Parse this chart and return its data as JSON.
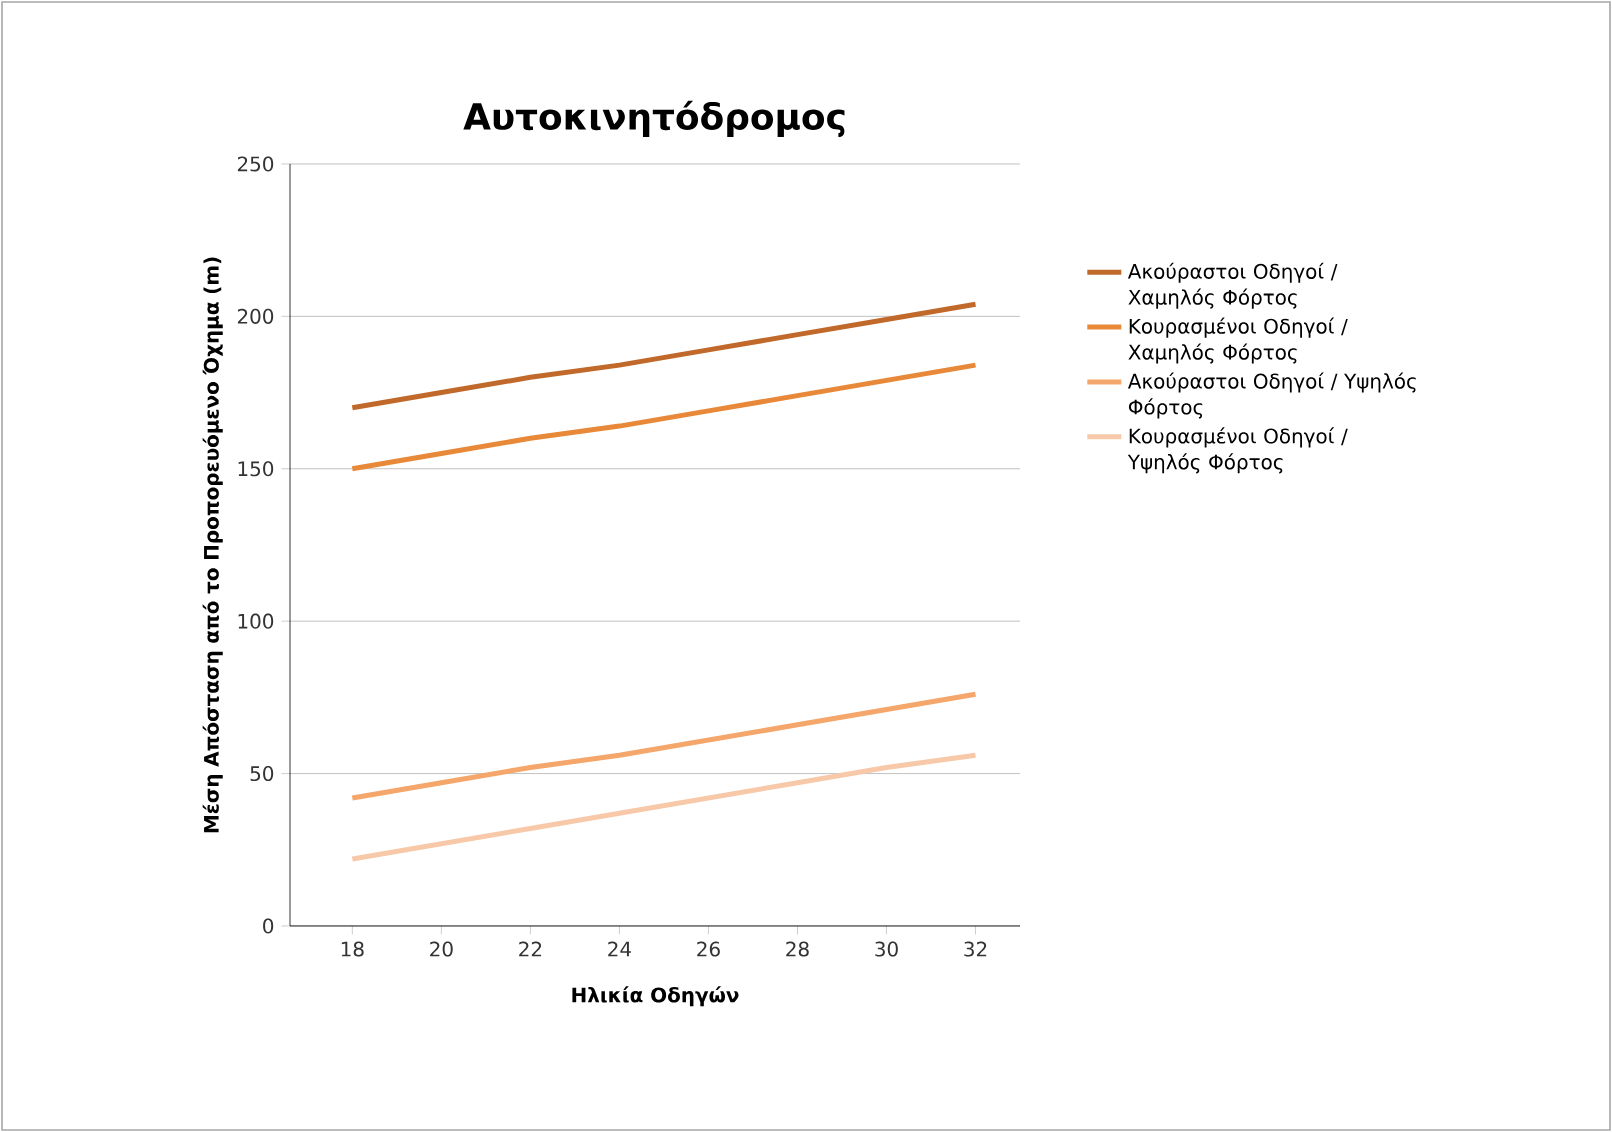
{
  "chart_data": {
    "type": "line",
    "title": "Αυτοκινητόδρομος",
    "xlabel": "Ηλικία Οδηγών",
    "ylabel": "Μέση Απόσταση από το Προπορευόμενο Όχημα (m)",
    "x": [
      18,
      20,
      22,
      24,
      26,
      28,
      30,
      32
    ],
    "series": [
      {
        "name": "Ακούραστοι Οδηγοί / Χαμηλός Φόρτος",
        "color": "#c0692a",
        "values": [
          170,
          175,
          180,
          184,
          189,
          194,
          199,
          204
        ]
      },
      {
        "name": "Κουρασμένοι Οδηγοί / Χαμηλός Φόρτος",
        "color": "#e8893a",
        "values": [
          150,
          155,
          160,
          164,
          169,
          174,
          179,
          184
        ]
      },
      {
        "name": "Ακούραστοι Οδηγοί / Υψηλός Φόρτος",
        "color": "#f4a66b",
        "values": [
          42,
          47,
          52,
          56,
          61,
          66,
          71,
          76
        ]
      },
      {
        "name": "Κουρασμένοι Οδηγοί / Υψηλός Φόρτος",
        "color": "#f7c9a9",
        "values": [
          22,
          27,
          32,
          37,
          42,
          47,
          52,
          56
        ]
      }
    ],
    "xlim": [
      16.6,
      33
    ],
    "ylim": [
      0,
      250
    ],
    "xticks": [
      18,
      20,
      22,
      24,
      26,
      28,
      30,
      32
    ],
    "yticks": [
      0,
      50,
      100,
      150,
      200,
      250
    ],
    "grid": "y",
    "legend": "right",
    "marker": "none",
    "line_style": "solid"
  }
}
